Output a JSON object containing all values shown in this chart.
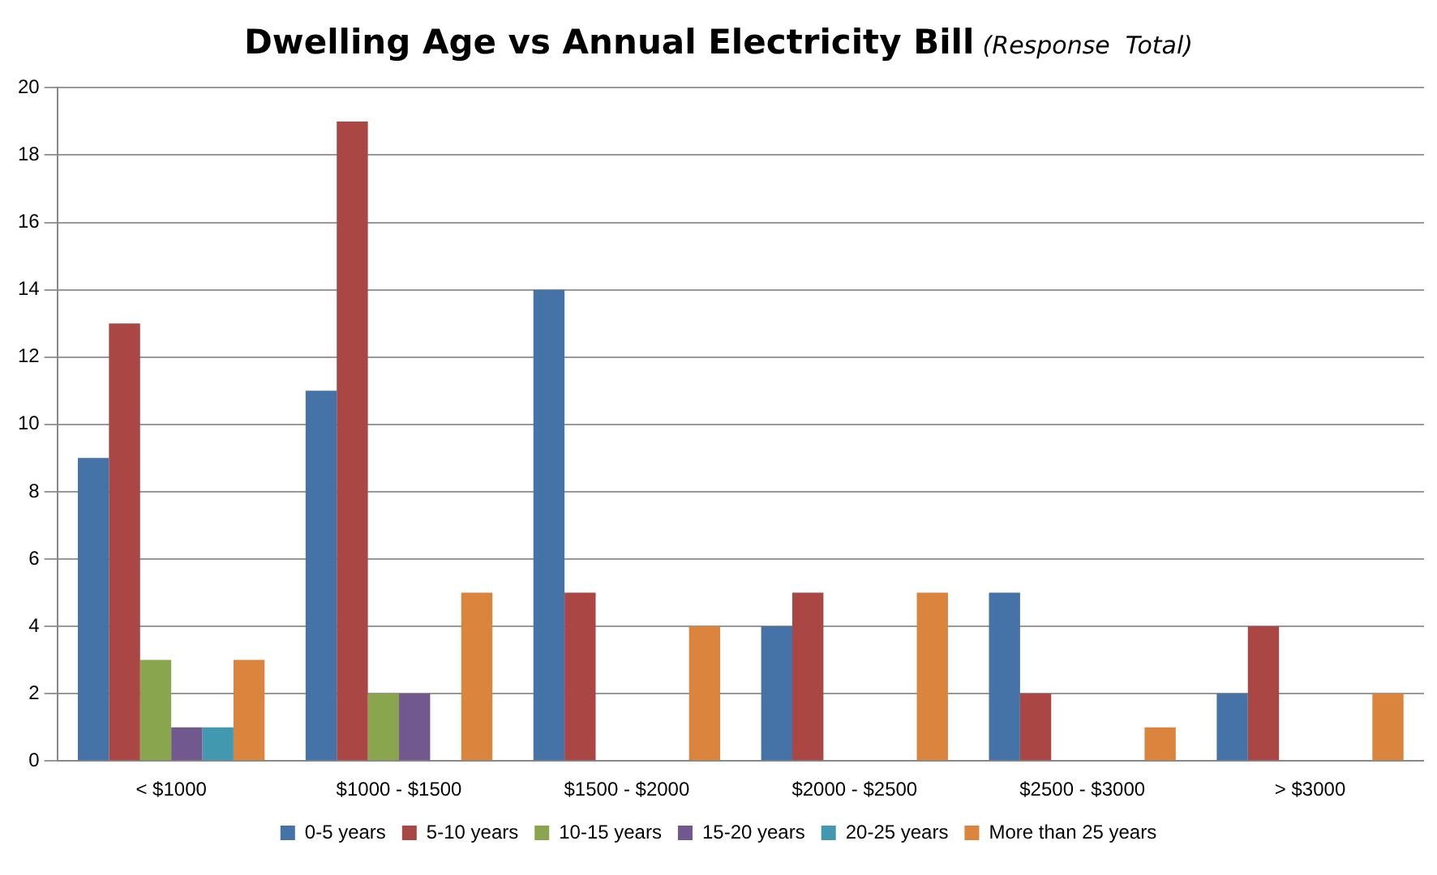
{
  "chart_data": {
    "type": "bar",
    "title": "Dwelling Age vs Annual Electricity Bill",
    "subtitle": "(Response  Total)",
    "categories": [
      "< $1000",
      "$1000 - $1500",
      "$1500 - $2000",
      "$2000 - $2500",
      "$2500 - $3000",
      "> $3000"
    ],
    "series": [
      {
        "name": "0-5 years",
        "color": "#4572a7",
        "values": [
          9,
          11,
          14,
          4,
          5,
          2
        ]
      },
      {
        "name": "5-10 years",
        "color": "#aa4643",
        "values": [
          13,
          19,
          5,
          5,
          2,
          4
        ]
      },
      {
        "name": "10-15 years",
        "color": "#89a54e",
        "values": [
          3,
          2,
          0,
          0,
          0,
          0
        ]
      },
      {
        "name": "15-20 years",
        "color": "#71588f",
        "values": [
          1,
          2,
          0,
          0,
          0,
          0
        ]
      },
      {
        "name": "20-25 years",
        "color": "#4198af",
        "values": [
          1,
          0,
          0,
          0,
          0,
          0
        ]
      },
      {
        "name": "More than 25 years",
        "color": "#db843d",
        "values": [
          3,
          5,
          4,
          5,
          1,
          2
        ]
      }
    ],
    "ylim": [
      0,
      20
    ],
    "yticks": [
      0,
      2,
      4,
      6,
      8,
      10,
      12,
      14,
      16,
      18,
      20
    ],
    "grid": "y",
    "legend": "bottom"
  }
}
